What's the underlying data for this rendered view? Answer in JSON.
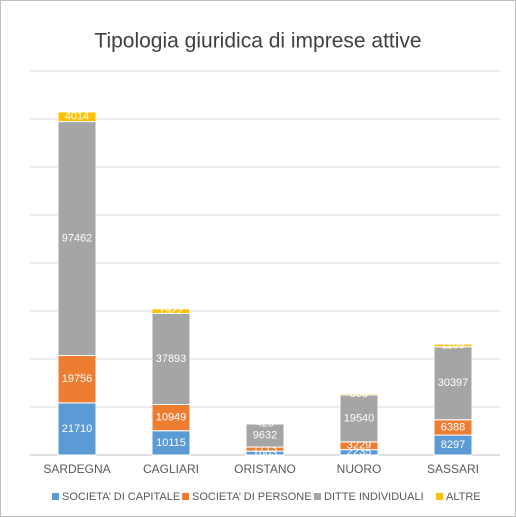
{
  "chart_data": {
    "type": "stacked_bar",
    "title": "Tipologia giuridica di imprese attive",
    "categories": [
      "SARDEGNA",
      "CAGLIARI",
      "ORISTANO",
      "NUORO",
      "SASSARI"
    ],
    "series": [
      {
        "name": "SOCIETA’ DI CAPITALE",
        "color": "#5b9bd5",
        "values": [
          21710,
          10115,
          1603,
          2235,
          8297
        ]
      },
      {
        "name": "SOCIETA’ DI PERSONE",
        "color": "#ed7d31",
        "values": [
          19756,
          10949,
          1713,
          3229,
          6388
        ]
      },
      {
        "name": "DITTE INDIVIDUALI",
        "color": "#a5a5a5",
        "values": [
          97462,
          37893,
          9632,
          19540,
          30397
        ]
      },
      {
        "name": "ALTRE",
        "color": "#ffc000",
        "values": [
          4014,
          1922,
          425,
          558,
          1109
        ]
      }
    ],
    "ylim": [
      0,
      160000
    ],
    "yticks": [
      0,
      20000,
      40000,
      60000,
      80000,
      100000,
      120000,
      140000,
      160000
    ],
    "grid": true,
    "legend": "bottom"
  }
}
